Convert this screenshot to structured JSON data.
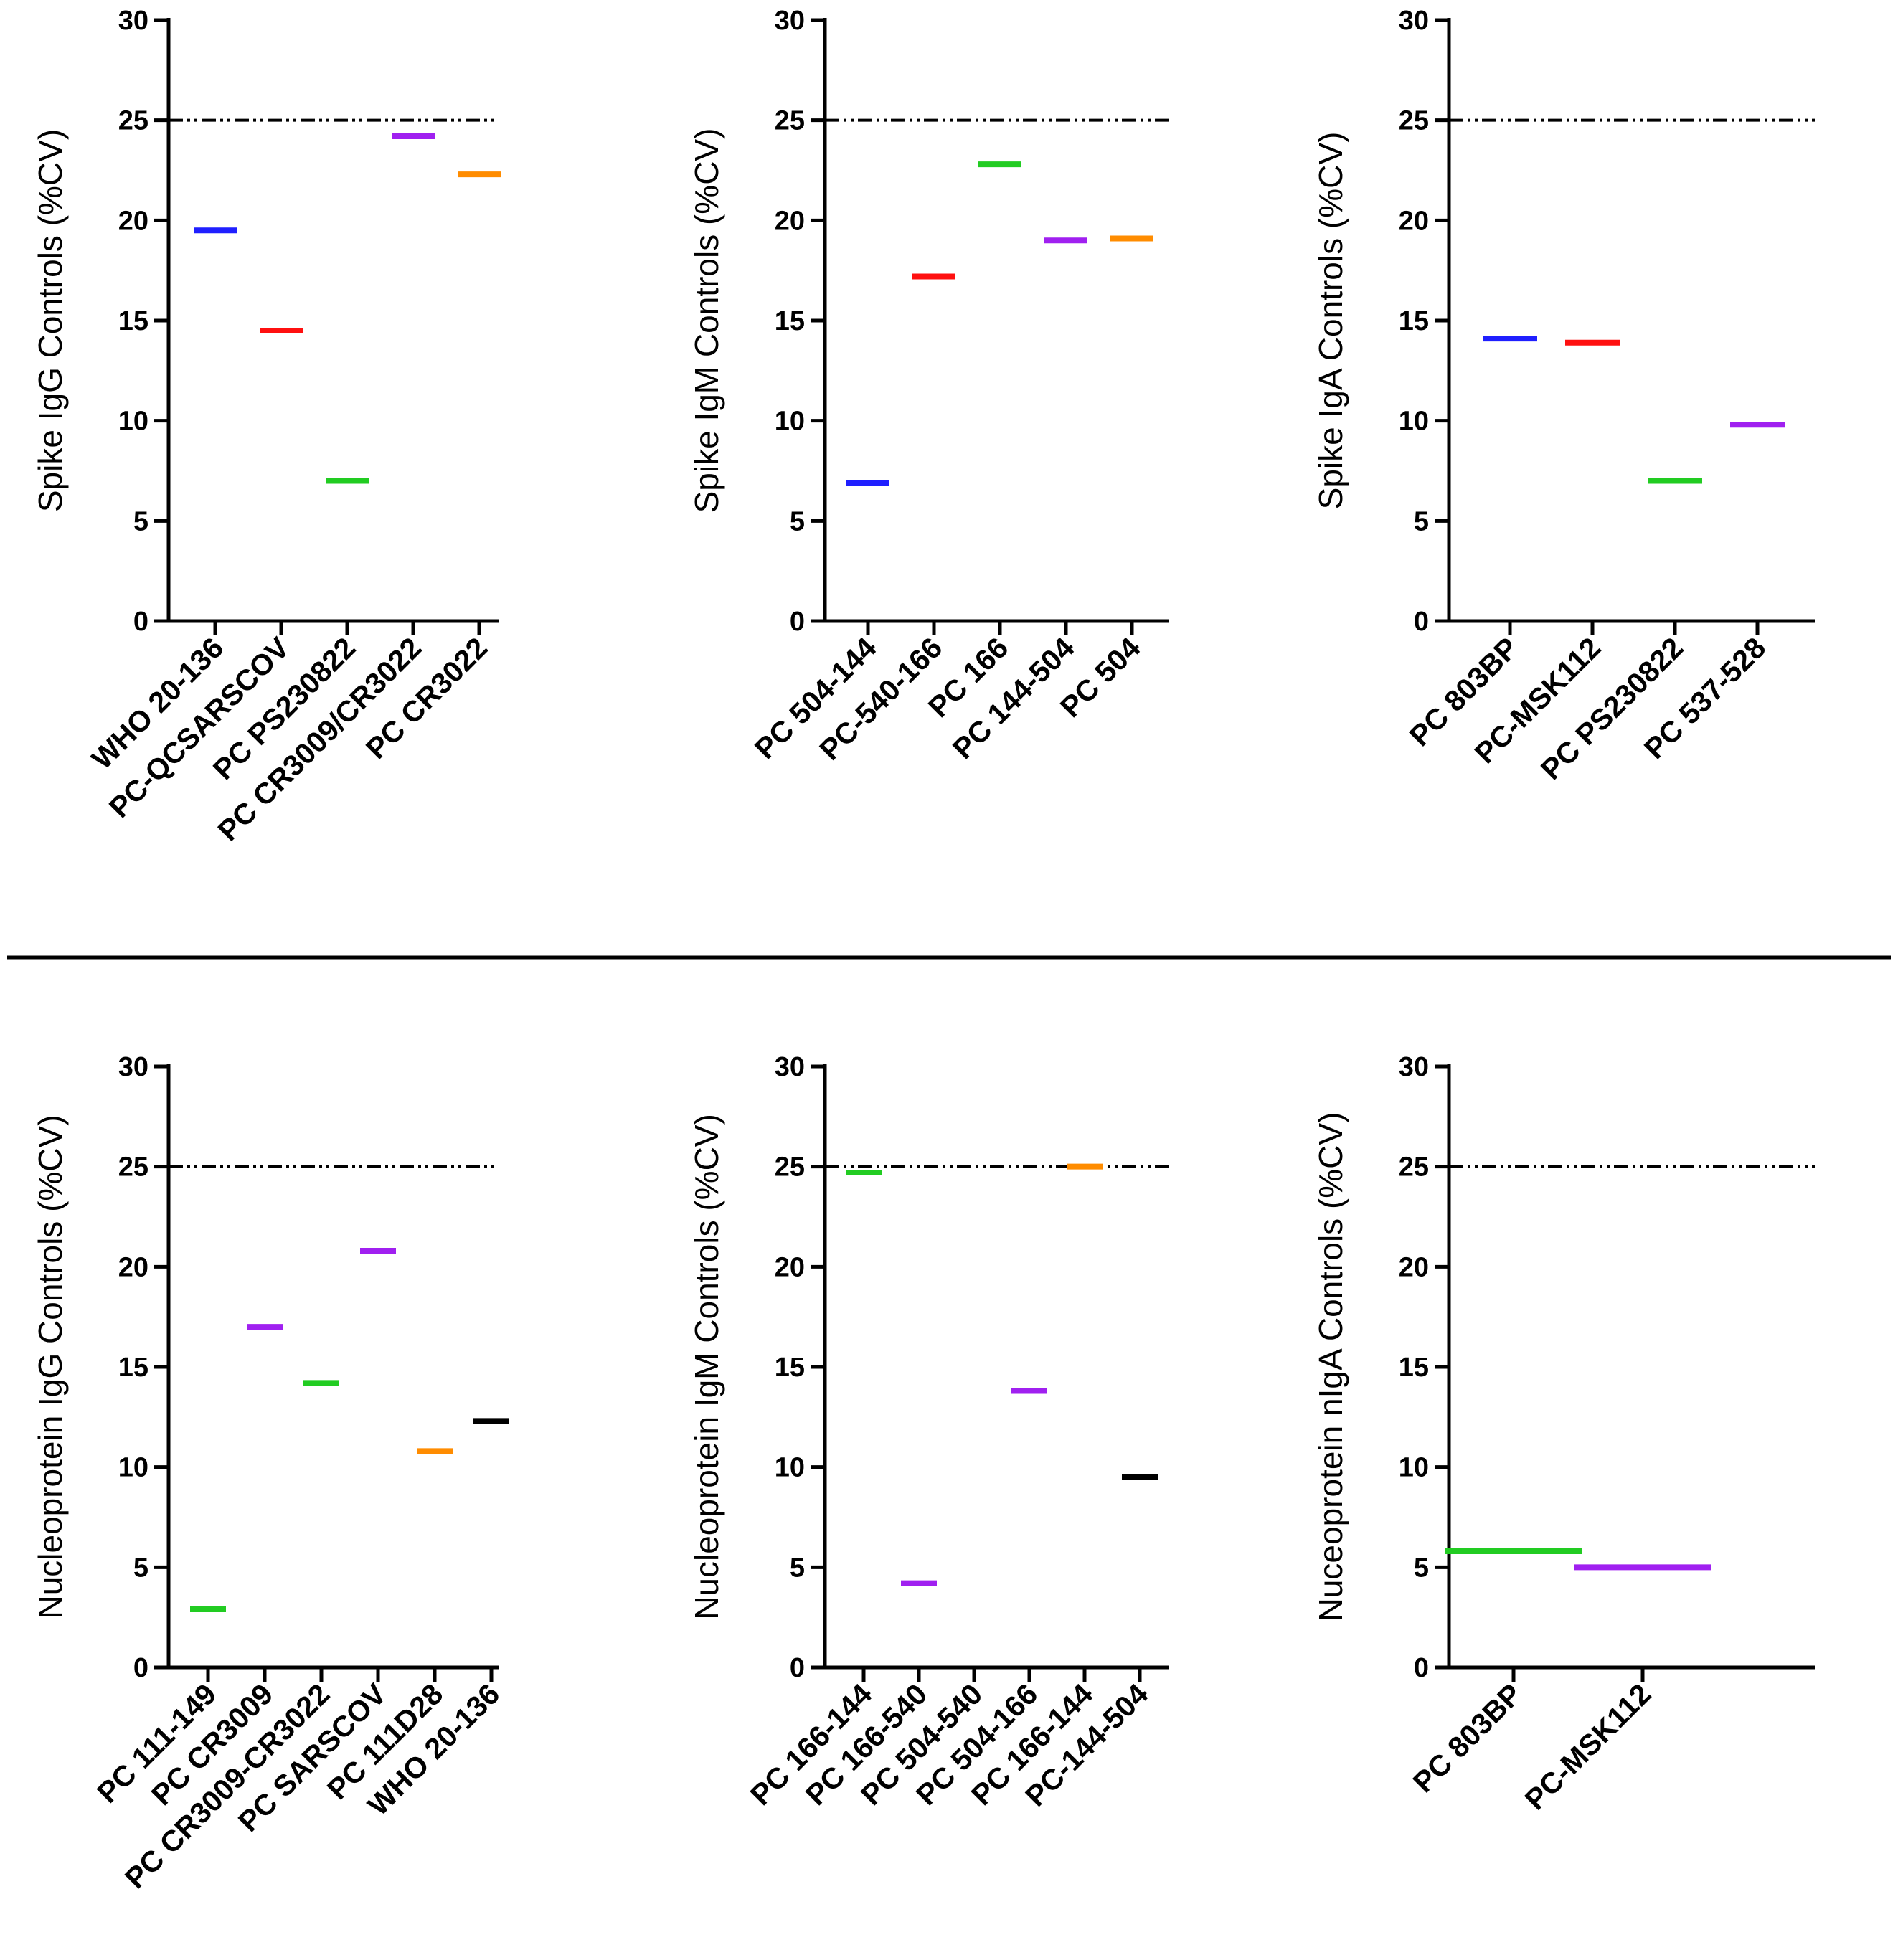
{
  "figure": {
    "reference_line": {
      "value": 25,
      "style": "dash-dot-dot"
    },
    "divider": true
  },
  "chart_data": [
    {
      "type": "scatter",
      "ylabel": "Spike IgG Controls (%CV)",
      "ylim": [
        0,
        30
      ],
      "yticks": [
        "0",
        "5",
        "10",
        "15",
        "20",
        "25",
        "30"
      ],
      "categories": [
        "WHO 20-136",
        "PC-QCSARSCOV",
        "PC PS230822",
        "PC CR3009/CR3022",
        "PC CR3022"
      ],
      "values": [
        19.5,
        14.5,
        7.0,
        24.2,
        22.3
      ],
      "colors": [
        "#1f1fff",
        "#ff1010",
        "#22cc22",
        "#a020f0",
        "#ff8c00"
      ]
    },
    {
      "type": "scatter",
      "ylabel": "Spike IgM Controls (%CV)",
      "ylim": [
        0,
        30
      ],
      "yticks": [
        "0",
        "5",
        "10",
        "15",
        "20",
        "25",
        "30"
      ],
      "categories": [
        "PC 504-144",
        "PC-540-166",
        "PC 166",
        "PC 144-504",
        "PC 504"
      ],
      "values": [
        6.9,
        17.2,
        22.8,
        19.0,
        19.1
      ],
      "colors": [
        "#1f1fff",
        "#ff1010",
        "#22cc22",
        "#a020f0",
        "#ff8c00"
      ]
    },
    {
      "type": "scatter",
      "ylabel": "Spike IgA Controls (%CV)",
      "ylim": [
        0,
        30
      ],
      "yticks": [
        "0",
        "5",
        "10",
        "15",
        "20",
        "25",
        "30"
      ],
      "categories": [
        "PC 803BP",
        "PC-MSK112",
        "PC PS230822",
        "PC 537-528"
      ],
      "values": [
        14.1,
        13.9,
        7.0,
        9.8
      ],
      "colors": [
        "#1f1fff",
        "#ff1010",
        "#22cc22",
        "#a020f0"
      ]
    },
    {
      "type": "scatter",
      "ylabel": "Nucleoprotein IgG Controls (%CV)",
      "ylim": [
        0,
        30
      ],
      "yticks": [
        "0",
        "5",
        "10",
        "15",
        "20",
        "25",
        "30"
      ],
      "categories": [
        "PC 111-149",
        "PC CR3009",
        "PC CR3009-CR3022",
        "PC SARSCOV",
        "PC 111D28",
        "WHO 20-136"
      ],
      "values": [
        2.9,
        17.0,
        14.2,
        20.8,
        10.8,
        12.3
      ],
      "colors": [
        "#22cc22",
        "#a020f0",
        "#22cc22",
        "#a020f0",
        "#ff8c00",
        "#000000"
      ]
    },
    {
      "type": "scatter",
      "ylabel": "Nucleoprotein IgM Controls (%CV)",
      "ylim": [
        0,
        30
      ],
      "yticks": [
        "0",
        "5",
        "10",
        "15",
        "20",
        "25",
        "30"
      ],
      "categories": [
        "PC 166-144",
        "PC 166-540",
        "PC 504-540",
        "PC 504-166",
        "PC 166-144",
        "PC-144-504"
      ],
      "values": [
        24.7,
        4.2,
        null,
        13.8,
        25.0,
        9.5
      ],
      "colors": [
        "#22cc22",
        "#a020f0",
        "#000000",
        "#a020f0",
        "#ff8c00",
        "#000000"
      ]
    },
    {
      "type": "scatter",
      "ylabel": "Nuceoprotein nIgA Controls (%CV)",
      "ylim": [
        0,
        30
      ],
      "yticks": [
        "0",
        "5",
        "10",
        "15",
        "20",
        "25",
        "30"
      ],
      "categories": [
        "PC 803BP",
        "PC-MSK112"
      ],
      "values": [
        5.8,
        5.0
      ],
      "colors": [
        "#22cc22",
        "#a020f0"
      ]
    }
  ]
}
